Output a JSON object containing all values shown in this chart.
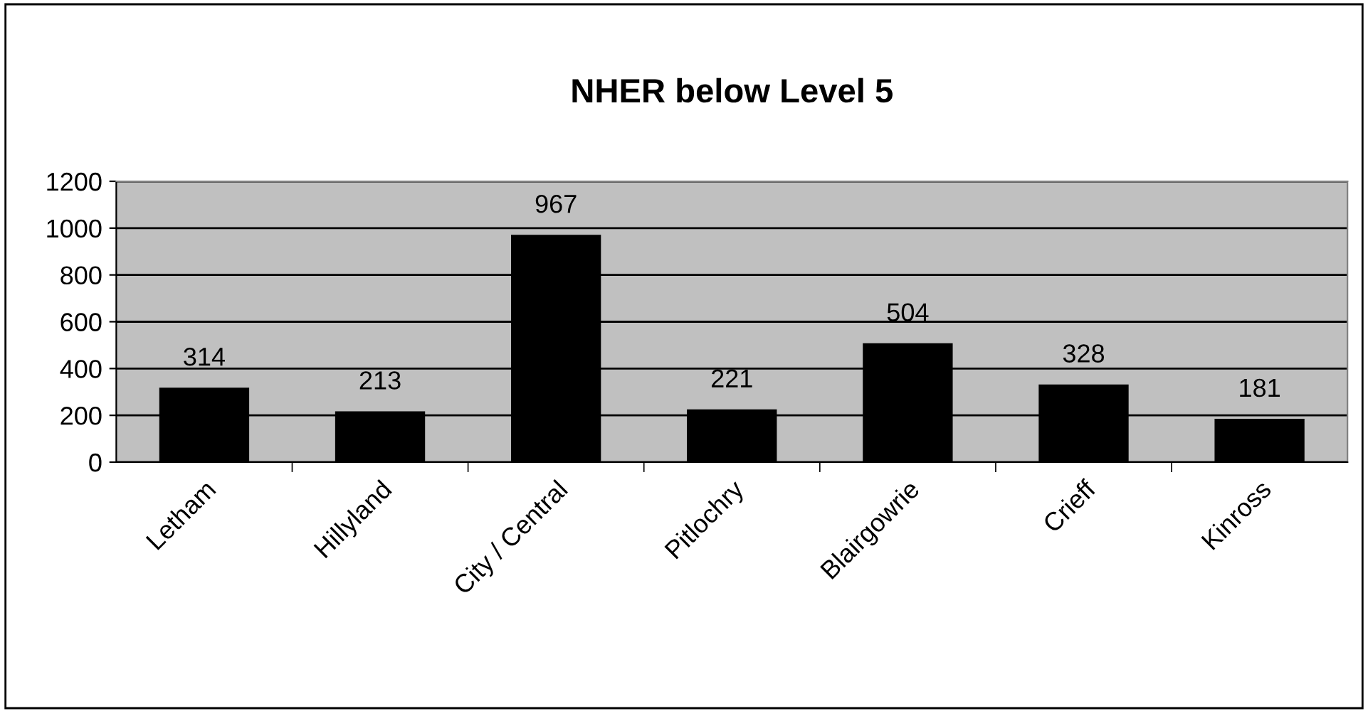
{
  "chart_data": {
    "type": "bar",
    "title": "NHER below Level 5",
    "categories": [
      "Letham",
      "Hillyland",
      "City / Central",
      "Pitlochry",
      "Blairgowrie",
      "Crieff",
      "Kinross"
    ],
    "values": [
      314,
      213,
      967,
      221,
      504,
      328,
      181
    ],
    "color": "#000000",
    "ylim": [
      0,
      1200
    ],
    "yticks": [
      0,
      200,
      400,
      600,
      800,
      1000,
      1200
    ],
    "grid": "y",
    "data_labels": true,
    "legend": false
  }
}
